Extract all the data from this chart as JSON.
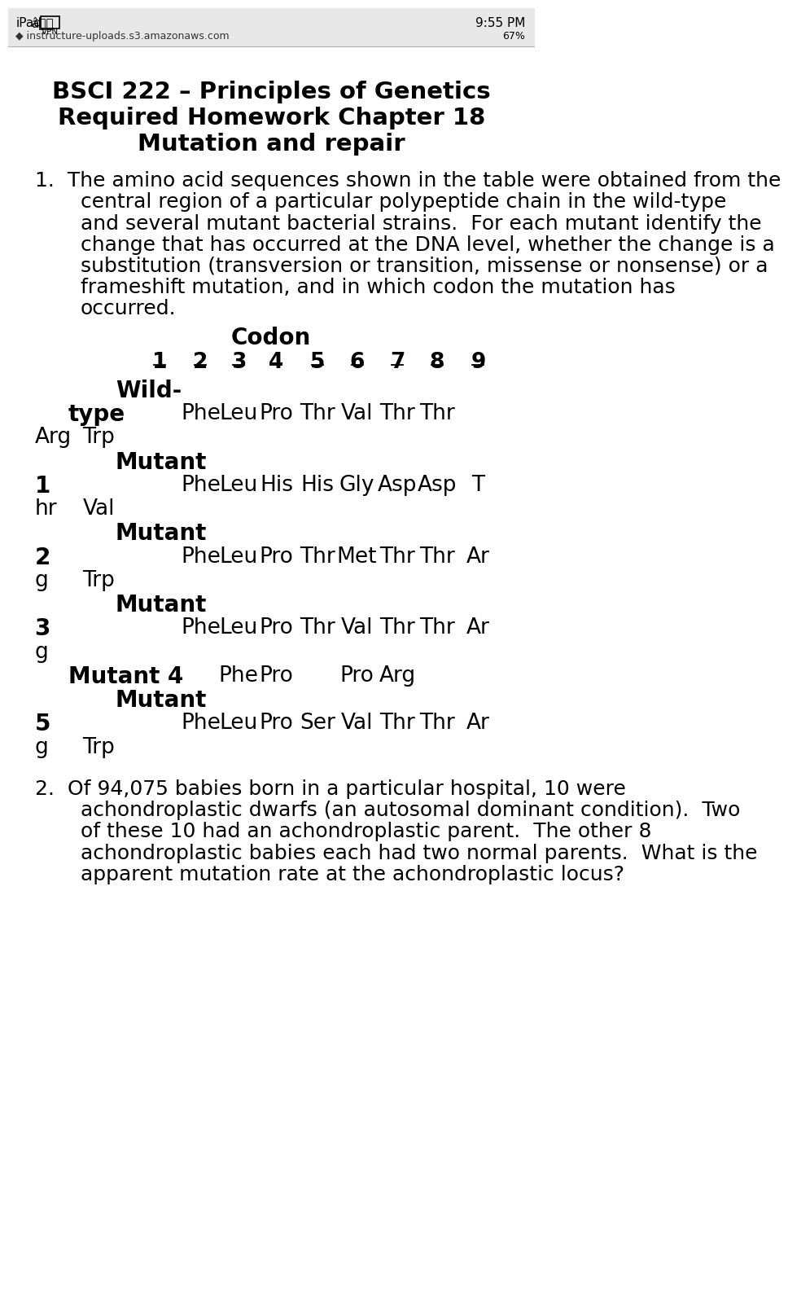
{
  "status_bar_bg": "#f0f0f0",
  "status_bar_left": "iPad    VPN",
  "status_bar_center": "9:55 PM",
  "status_bar_url": "◆ instructure-uploads.s3.amazonaws.com",
  "title_lines": [
    "BSCI 222 – Principles of Genetics",
    "Required Homework Chapter 18",
    "Mutation and repair"
  ],
  "q1_intro": "1.  The amino acid sequences shown in the table were obtained from the",
  "q1_lines": [
    "central region of a particular polypeptide chain in the wild-type",
    "and several mutant bacterial strains.  For each mutant identify the",
    "change that has occurred at the DNA level, whether the change is a",
    "substitution (transversion or transition, missense or nonsense) or a",
    "frameshift mutation, and in which codon the mutation has",
    "occurred."
  ],
  "codon_label": "Codon",
  "codon_numbers": [
    "1",
    "2",
    "3",
    "4",
    "5",
    "6",
    "7",
    "8",
    "9"
  ],
  "q2_intro": "2.  Of 94,075 babies born in a particular hospital, 10 were",
  "q2_lines": [
    "achondroplastic dwarfs (an autosomal dominant condition).  Two",
    "of these 10 had an achondroplastic parent.  The other 8",
    "achondroplastic babies each had two normal parents.  What is the",
    "apparent mutation rate at the achondroplastic locus?"
  ],
  "bg_color": "#ffffff",
  "text_color": "#000000"
}
